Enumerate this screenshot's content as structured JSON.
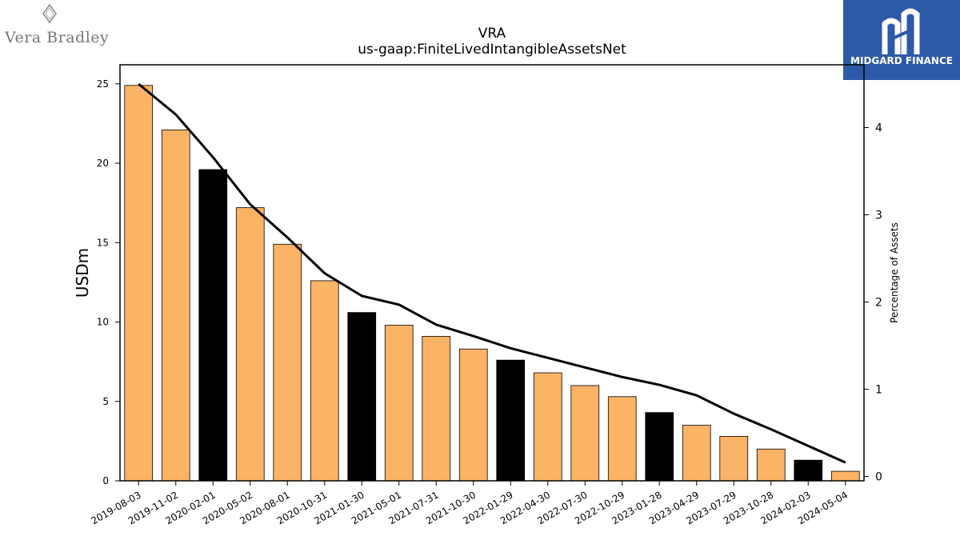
{
  "logos": {
    "left_brand": "Vera Bradley",
    "right_brand": "MIDGARD FINANCE"
  },
  "chart_data": {
    "type": "bar",
    "title": "VRA",
    "subtitle": "us-gaap:FiniteLivedIntangibleAssetsNet",
    "ylabel": "USDm",
    "y2label": "Percentage of Assets",
    "ylim": [
      0,
      26.2
    ],
    "y2lim": [
      -0.05,
      4.72
    ],
    "yticks": [
      0,
      5,
      10,
      15,
      20,
      25
    ],
    "y2ticks": [
      0,
      1,
      2,
      3,
      4
    ],
    "categories": [
      "2019-08-03",
      "2019-11-02",
      "2020-02-01",
      "2020-05-02",
      "2020-08-01",
      "2020-10-31",
      "2021-01-30",
      "2021-05-01",
      "2021-07-31",
      "2021-10-30",
      "2022-01-29",
      "2022-04-30",
      "2022-07-30",
      "2022-10-29",
      "2023-01-28",
      "2023-04-29",
      "2023-07-29",
      "2023-10-28",
      "2024-02-03",
      "2024-05-04"
    ],
    "series": [
      {
        "type": "bar",
        "values": [
          24.9,
          22.1,
          19.6,
          17.2,
          14.9,
          12.6,
          10.6,
          9.8,
          9.1,
          8.3,
          7.6,
          6.8,
          6.0,
          5.3,
          4.3,
          3.5,
          2.8,
          2.0,
          1.3,
          0.6
        ]
      },
      {
        "type": "line",
        "axis": "secondary",
        "values": [
          4.5,
          4.15,
          3.66,
          3.12,
          2.74,
          2.33,
          2.07,
          1.97,
          1.74,
          1.61,
          1.47,
          1.36,
          1.25,
          1.14,
          1.05,
          0.93,
          0.72,
          0.54,
          0.35,
          0.16
        ]
      }
    ],
    "bar_colors": {
      "default": "#fbb366",
      "fiscal_year_end": "#000000"
    },
    "fiscal_year_end_indices": [
      2,
      6,
      10,
      14,
      18
    ],
    "line_color": "#000000"
  }
}
